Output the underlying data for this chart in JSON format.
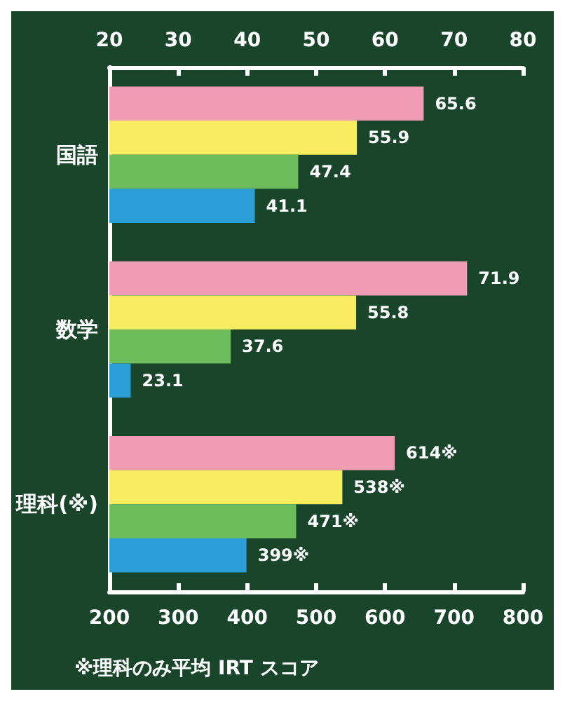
{
  "chart_data": {
    "type": "bar",
    "orientation": "horizontal",
    "categories": [
      "国語",
      "数学",
      "理科(※)"
    ],
    "series": [
      {
        "color": "#f09cb4",
        "axis": "x2",
        "values": [
          65.6,
          71.9,
          null
        ],
        "value_labels": [
          "65.6",
          "71.9",
          null
        ]
      },
      {
        "color": "#f8ec60",
        "axis": "x2",
        "values": [
          55.9,
          55.8,
          null
        ],
        "value_labels": [
          "55.9",
          "55.8",
          null
        ]
      },
      {
        "color": "#6cbc5c",
        "axis": "x2",
        "values": [
          47.4,
          37.6,
          null
        ],
        "value_labels": [
          "47.4",
          "37.6",
          null
        ]
      },
      {
        "color": "#2a9fd6",
        "axis": "x2",
        "values": [
          41.1,
          23.1,
          null
        ],
        "value_labels": [
          "41.1",
          "23.1",
          null
        ]
      },
      {
        "color": "#f09cb4",
        "values": [
          null,
          null,
          614
        ],
        "value_labels": [
          null,
          null,
          "614※"
        ]
      },
      {
        "color": "#f8ec60",
        "values": [
          null,
          null,
          538
        ],
        "value_labels": [
          null,
          null,
          "538※"
        ]
      },
      {
        "color": "#6cbc5c",
        "values": [
          null,
          null,
          471
        ],
        "value_labels": [
          null,
          null,
          "471※"
        ]
      },
      {
        "color": "#2a9fd6",
        "values": [
          null,
          null,
          399
        ],
        "value_labels": [
          null,
          null,
          "399※"
        ]
      }
    ],
    "x2lim": [
      20,
      80
    ],
    "x2ticks": [
      20,
      30,
      40,
      50,
      60,
      70,
      80
    ],
    "xlim": [
      200,
      800
    ],
    "xticks": [
      200,
      300,
      400,
      500,
      600,
      700,
      800
    ],
    "grid": false,
    "annotations": [
      "※理科のみ平均 IRT スコア"
    ]
  }
}
